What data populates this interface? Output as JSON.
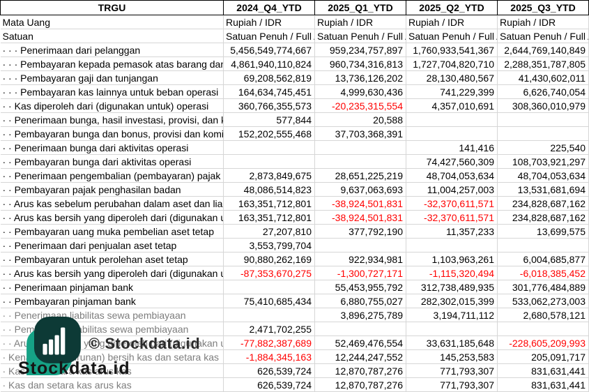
{
  "table": {
    "columns": [
      "TRGU",
      "2024_Q4_YTD",
      "2025_Q1_YTD",
      "2025_Q2_YTD",
      "2025_Q3_YTD"
    ],
    "meta_rows": [
      {
        "label": "Mata Uang",
        "values": [
          "Rupiah / IDR",
          "Rupiah / IDR",
          "Rupiah / IDR",
          "Rupiah / IDR"
        ]
      },
      {
        "label": "Satuan",
        "values": [
          "Satuan Penuh / Full A",
          "Satuan Penuh / Full A",
          "Satuan Penuh / Full A",
          "Satuan Penuh / Full A"
        ]
      }
    ],
    "rows": [
      {
        "label": "· · · Penerimaan dari pelanggan",
        "values": [
          "5,456,549,774,667",
          "959,234,757,897",
          "1,760,933,541,367",
          "2,644,769,140,849"
        ]
      },
      {
        "label": "· · · Pembayaran kepada pemasok atas barang dan ja",
        "values": [
          "4,861,940,110,824",
          "960,734,316,813",
          "1,727,704,820,710",
          "2,288,351,787,805"
        ]
      },
      {
        "label": "· · · Pembayaran gaji dan tunjangan",
        "values": [
          "69,208,562,819",
          "13,736,126,202",
          "28,130,480,567",
          "41,430,602,011"
        ]
      },
      {
        "label": "· · · Pembayaran kas lainnya untuk beban operasi",
        "values": [
          "164,634,745,451",
          "4,999,630,436",
          "741,229,399",
          "6,626,740,054"
        ]
      },
      {
        "label": "· · Kas diperoleh dari (digunakan untuk) operasi",
        "values": [
          "360,766,355,573",
          "-20,235,315,554",
          "4,357,010,691",
          "308,360,010,979"
        ]
      },
      {
        "label": "· · Penerimaan bunga, hasil investasi, provisi, dan ko",
        "values": [
          "577,844",
          "20,588",
          "",
          ""
        ]
      },
      {
        "label": "· · Pembayaran bunga dan bonus, provisi dan komisi",
        "values": [
          "152,202,555,468",
          "37,703,368,391",
          "",
          ""
        ]
      },
      {
        "label": "· · Penerimaan bunga dari aktivitas operasi",
        "values": [
          "",
          "",
          "141,416",
          "225,540"
        ]
      },
      {
        "label": "· · Pembayaran bunga dari aktivitas operasi",
        "values": [
          "",
          "",
          "74,427,560,309",
          "108,703,921,297"
        ]
      },
      {
        "label": "· · Penerimaan pengembalian (pembayaran) pajak p",
        "values": [
          "2,873,849,675",
          "28,651,225,219",
          "48,704,053,634",
          "48,704,053,634"
        ]
      },
      {
        "label": "· · Pembayaran pajak penghasilan badan",
        "values": [
          "48,086,514,823",
          "9,637,063,693",
          "11,004,257,003",
          "13,531,681,694"
        ]
      },
      {
        "label": "· · Arus kas sebelum perubahan dalam aset dan liabi",
        "values": [
          "163,351,712,801",
          "-38,924,501,831",
          "-32,370,611,571",
          "234,828,687,162"
        ]
      },
      {
        "label": "· · Arus kas bersih yang diperoleh dari (digunakan un",
        "values": [
          "163,351,712,801",
          "-38,924,501,831",
          "-32,370,611,571",
          "234,828,687,162"
        ]
      },
      {
        "label": "· · Pembayaran uang muka pembelian aset tetap",
        "values": [
          "27,207,810",
          "377,792,190",
          "11,357,233",
          "13,699,575"
        ]
      },
      {
        "label": "· · Penerimaan dari penjualan aset tetap",
        "values": [
          "3,553,799,704",
          "",
          "",
          ""
        ]
      },
      {
        "label": "· · Pembayaran untuk perolehan aset tetap",
        "values": [
          "90,880,262,169",
          "922,934,981",
          "1,103,963,261",
          "6,004,685,877"
        ]
      },
      {
        "label": "· · Arus kas bersih yang diperoleh dari (digunakan un",
        "values": [
          "-87,353,670,275",
          "-1,300,727,171",
          "-1,115,320,494",
          "-6,018,385,452"
        ]
      },
      {
        "label": "· · Penerimaan pinjaman bank",
        "values": [
          "",
          "55,453,955,792",
          "312,738,489,935",
          "301,776,484,889"
        ]
      },
      {
        "label": "· · Pembayaran pinjaman bank",
        "values": [
          "75,410,685,434",
          "6,880,755,027",
          "282,302,015,399",
          "533,062,273,003"
        ]
      },
      {
        "label": "· · Penerimaan liabilitas sewa pembiayaan",
        "dim": true,
        "values": [
          "",
          "3,896,275,789",
          "3,194,711,112",
          "2,680,578,121"
        ]
      },
      {
        "label": "· · Pembayaran liabilitas sewa pembiayaan",
        "dim": true,
        "values": [
          "2,471,702,255",
          "",
          "",
          ""
        ]
      },
      {
        "label": "· · Arus kas bersih yang diperoleh dari (digunakan un",
        "dim": true,
        "values": [
          "-77,882,387,689",
          "52,469,476,554",
          "33,631,185,648",
          "-228,605,209,993"
        ]
      },
      {
        "label": "· Kenaikan (penurunan) bersih kas dan setara kas",
        "dim": true,
        "values": [
          "-1,884,345,163",
          "12,244,247,552",
          "145,253,583",
          "205,091,717"
        ]
      },
      {
        "label": "· Kas dan setara kas arus kas",
        "dim": true,
        "values": [
          "626,539,724",
          "12,870,787,276",
          "771,793,307",
          "831,631,441"
        ]
      },
      {
        "label": "· Kas dan setara kas arus kas",
        "dim": true,
        "values": [
          "626,539,724",
          "12,870,787,276",
          "771,793,307",
          "831,631,441"
        ]
      }
    ]
  },
  "watermark": {
    "logo_text": "Stockdata.id",
    "copyright_text": "© Stockdata.id"
  },
  "colors": {
    "negative": "#ff0000",
    "grid": "#d6d6d6",
    "header_border": "#000000",
    "dim_label": "#7d7d7d",
    "logo_dark": "#0d3a36",
    "logo_green": "#16a286",
    "logo_bars": "#ffffff"
  }
}
